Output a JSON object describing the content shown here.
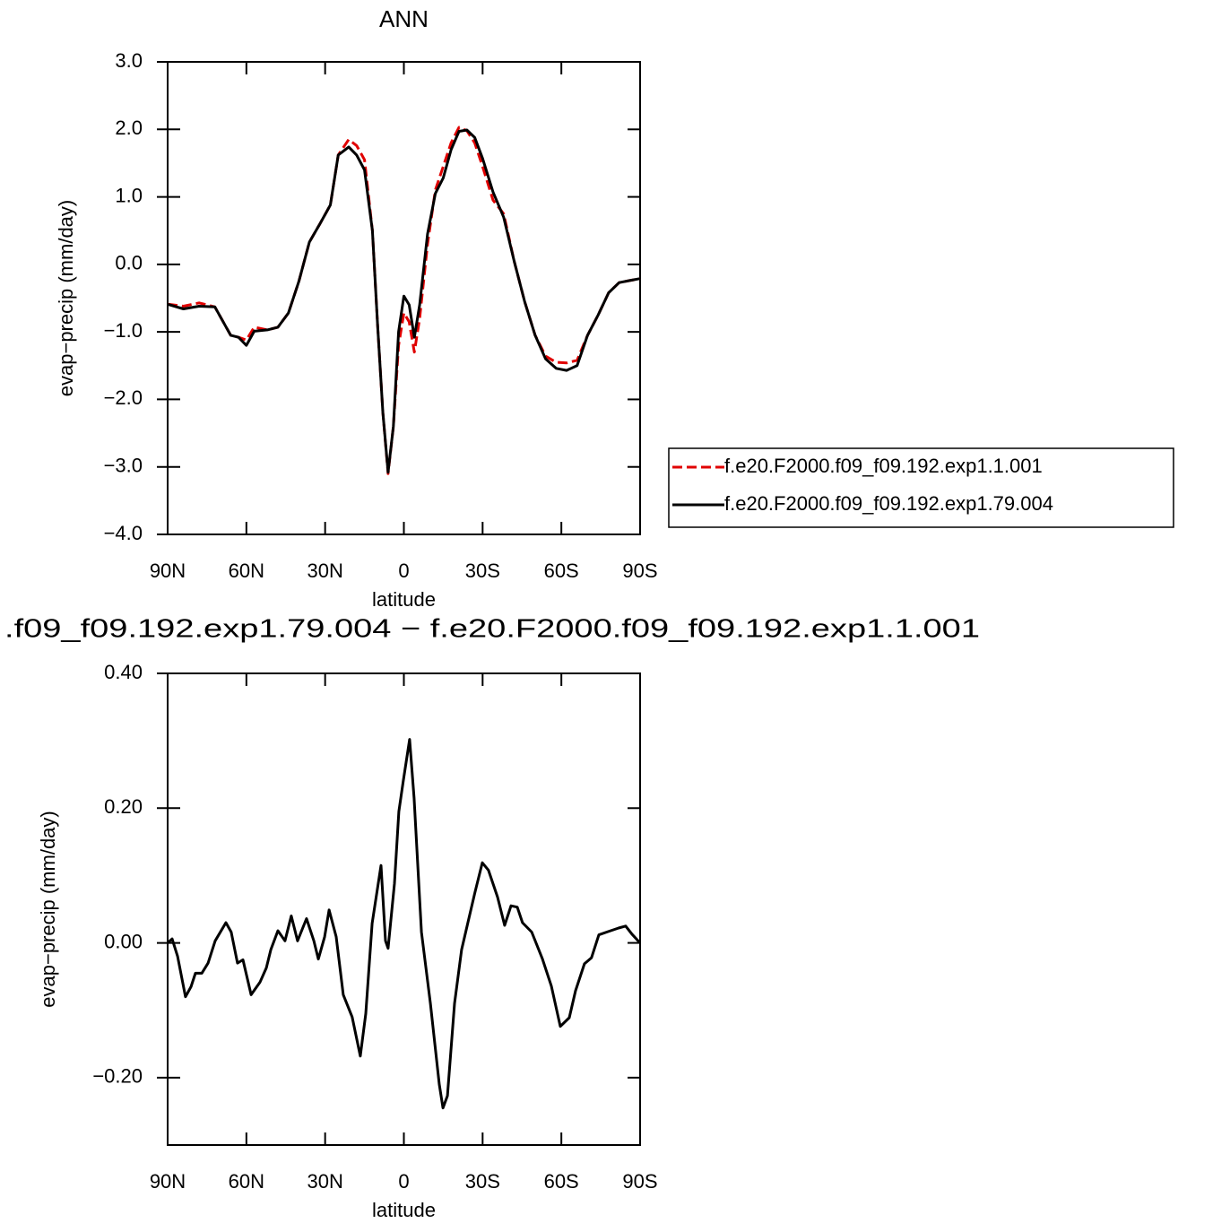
{
  "chart_data": [
    {
      "type": "line",
      "title": "ANN",
      "xlabel": "latitude",
      "ylabel": "evap−precip (mm/day)",
      "x": [
        90,
        84,
        78,
        72,
        66,
        63,
        60,
        57,
        52,
        48,
        44,
        40,
        36,
        32,
        28,
        25,
        21,
        18,
        15,
        12,
        10,
        8,
        6,
        4,
        2,
        0,
        -2,
        -4,
        -6,
        -9,
        -12,
        -15,
        -18,
        -21,
        -24,
        -27,
        -30,
        -34,
        -38,
        -42,
        -46,
        -50,
        -54,
        -58,
        -62,
        -66,
        -70,
        -74,
        -78,
        -82,
        -86,
        -90
      ],
      "series": [
        {
          "name": "f.e20.F2000.f09_f09.192.exp1.1.001",
          "color": "#e00000",
          "linestyle": "dashed",
          "values": [
            -0.59,
            -0.62,
            -0.57,
            -0.63,
            -1.05,
            -1.08,
            -1.12,
            -0.93,
            -0.97,
            -0.93,
            -0.72,
            -0.25,
            0.33,
            0.6,
            0.88,
            1.62,
            1.85,
            1.76,
            1.55,
            0.5,
            -0.9,
            -2.2,
            -3.1,
            -2.4,
            -1.2,
            -0.72,
            -0.85,
            -1.3,
            -0.8,
            0.3,
            1.1,
            1.45,
            1.8,
            2.03,
            1.98,
            1.8,
            1.45,
            0.95,
            0.75,
            0.05,
            -0.55,
            -1.05,
            -1.36,
            -1.45,
            -1.46,
            -1.42,
            -1.05,
            -0.75,
            -0.42,
            -0.27,
            -0.24,
            -0.21
          ]
        },
        {
          "name": "f.e20.F2000.f09_f09.192.exp1.79.004",
          "color": "#000000",
          "linestyle": "solid",
          "values": [
            -0.59,
            -0.66,
            -0.62,
            -0.63,
            -1.05,
            -1.08,
            -1.2,
            -0.99,
            -0.97,
            -0.93,
            -0.72,
            -0.25,
            0.33,
            0.6,
            0.88,
            1.62,
            1.74,
            1.62,
            1.4,
            0.5,
            -0.9,
            -2.2,
            -3.08,
            -2.4,
            -1.0,
            -0.47,
            -0.6,
            -1.08,
            -0.6,
            0.45,
            1.05,
            1.28,
            1.7,
            1.97,
            1.99,
            1.88,
            1.57,
            1.07,
            0.7,
            0.05,
            -0.55,
            -1.05,
            -1.4,
            -1.54,
            -1.57,
            -1.5,
            -1.05,
            -0.75,
            -0.42,
            -0.27,
            -0.24,
            -0.21
          ]
        }
      ],
      "xlim": [
        90,
        -90
      ],
      "xticks": [
        {
          "value": 90,
          "label": "90N"
        },
        {
          "value": 60,
          "label": "60N"
        },
        {
          "value": 30,
          "label": "30N"
        },
        0,
        {
          "value": -30,
          "label": "30S"
        },
        {
          "value": -60,
          "label": "60S"
        },
        {
          "value": -90,
          "label": "90S"
        }
      ],
      "ylim": [
        -4,
        3
      ],
      "yticks": [
        {
          "value": 3,
          "label": "3.0"
        },
        {
          "value": 2,
          "label": "2.0"
        },
        {
          "value": 1,
          "label": "1.0"
        },
        {
          "value": 0,
          "label": "0.0"
        },
        {
          "value": -1,
          "label": "−1.0"
        },
        {
          "value": -2,
          "label": "−2.0"
        },
        {
          "value": -3,
          "label": "−3.0"
        },
        {
          "value": -4,
          "label": "−4.0"
        }
      ],
      "legend": "right"
    },
    {
      "type": "line",
      "title": ".f09_f09.192.exp1.79.004 − f.e20.F2000.f09_f09.192.exp1.1.001",
      "xlabel": "latitude",
      "ylabel": "evap−precip (mm/day)",
      "x": [
        90,
        88.3,
        86.2,
        83.2,
        81.1,
        79.4,
        77,
        74.6,
        71.9,
        67.8,
        65.8,
        63.4,
        61.3,
        58.2,
        54.8,
        52.4,
        50.7,
        48,
        45.3,
        42.9,
        40.5,
        37.1,
        34.3,
        32.6,
        30.2,
        28.5,
        25.8,
        23.1,
        19.7,
        16.6,
        14.5,
        12.1,
        8.7,
        7,
        6,
        3.6,
        1.9,
        0.2,
        -2.2,
        -3.9,
        -6.7,
        -10.1,
        -13.5,
        -14.9,
        -16.6,
        -19.3,
        -22,
        -24.4,
        -27.1,
        -29.9,
        -32.2,
        -35.7,
        -38.4,
        -40.8,
        -43.2,
        -45.2,
        -48.7,
        -52.8,
        -56.2,
        -59.6,
        -63,
        -65.4,
        -68.8,
        -71.5,
        -74.3,
        -77.3,
        -81.8,
        -84.5,
        -86.9,
        -90
      ],
      "values": [
        0.0,
        0.006,
        -0.02,
        -0.08,
        -0.065,
        -0.045,
        -0.045,
        -0.03,
        0.003,
        0.03,
        0.016,
        -0.03,
        -0.025,
        -0.077,
        -0.058,
        -0.037,
        -0.01,
        0.018,
        0.003,
        0.04,
        0.003,
        0.036,
        0.003,
        -0.024,
        0.009,
        0.049,
        0.009,
        -0.077,
        -0.11,
        -0.168,
        -0.105,
        0.029,
        0.115,
        0.003,
        -0.008,
        0.088,
        0.195,
        0.241,
        0.302,
        0.215,
        0.016,
        -0.09,
        -0.21,
        -0.245,
        -0.227,
        -0.09,
        -0.01,
        0.03,
        0.075,
        0.119,
        0.108,
        0.068,
        0.026,
        0.055,
        0.053,
        0.03,
        0.016,
        -0.024,
        -0.064,
        -0.124,
        -0.111,
        -0.071,
        -0.031,
        -0.022,
        0.012,
        0.016,
        0.022,
        0.025,
        0.013,
        0.0
      ],
      "color": "#000000",
      "xlim": [
        90,
        -90
      ],
      "xticks": [
        {
          "value": 90,
          "label": "90N"
        },
        {
          "value": 60,
          "label": "60N"
        },
        {
          "value": 30,
          "label": "30N"
        },
        0,
        {
          "value": -30,
          "label": "30S"
        },
        {
          "value": -60,
          "label": "60S"
        },
        {
          "value": -90,
          "label": "90S"
        }
      ],
      "ylim": [
        -0.3,
        0.4
      ],
      "yticks": [
        {
          "value": 0.4,
          "label": "0.40"
        },
        {
          "value": 0.2,
          "label": "0.20"
        },
        {
          "value": 0,
          "label": "0.00"
        },
        {
          "value": -0.2,
          "label": "−0.20"
        }
      ]
    }
  ]
}
